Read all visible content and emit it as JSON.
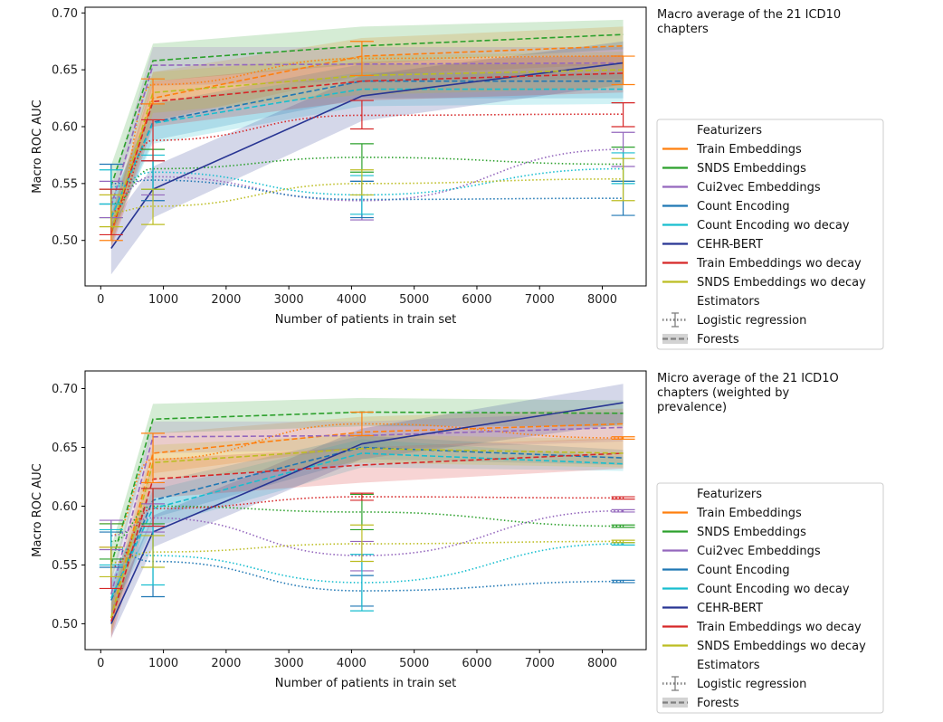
{
  "legend": {
    "featurizers_title": "Featurizers",
    "estimators_title": "Estimators",
    "estimators": [
      {
        "name": "Logistic regression",
        "style": "dotted"
      },
      {
        "name": "Forests",
        "style": "dashed"
      }
    ]
  },
  "colors": {
    "Train Embeddings": "#ff7f0e",
    "SNDS Embeddings": "#2ca02c",
    "Cui2vec Embeddings": "#9467bd",
    "Count Encoding": "#1f77b4",
    "Count Encoding wo decay": "#17becf",
    "CEHR-BERT": "#283593",
    "Train Embeddings wo decay": "#d62728",
    "SNDS Embeddings wo decay": "#bcbd22",
    "estimator_gray": "#808080"
  },
  "chart_data": [
    {
      "type": "line",
      "caption": "Macro average of the 21 ICD10 chapters",
      "xlabel": "Number of patients in train set",
      "ylabel": "Macro ROC AUC",
      "xlim": [
        -250,
        8700
      ],
      "ylim": [
        0.46,
        0.705
      ],
      "xticks": [
        0,
        1000,
        2000,
        3000,
        4000,
        5000,
        6000,
        7000,
        8000
      ],
      "yticks": [
        0.5,
        0.55,
        0.6,
        0.65,
        0.7
      ],
      "x": [
        166,
        833,
        4166,
        8333
      ],
      "series": [
        {
          "name": "Train Embeddings",
          "estimator": "Logistic regression",
          "values": [
            0.52,
            0.637,
            0.66,
            0.662
          ],
          "err_low": [
            0.5,
            0.62,
            0.645,
            0.637
          ],
          "err_high": [
            0.54,
            0.642,
            0.675,
            0.662
          ]
        },
        {
          "name": "Train Embeddings",
          "estimator": "Forests",
          "values": [
            0.505,
            0.625,
            0.662,
            0.671
          ],
          "band_low": [
            0.495,
            0.605,
            0.645,
            0.655
          ],
          "band_high": [
            0.515,
            0.648,
            0.678,
            0.688
          ]
        },
        {
          "name": "SNDS Embeddings",
          "estimator": "Logistic regression",
          "values": [
            0.532,
            0.563,
            0.573,
            0.567
          ],
          "err_low": [
            0.52,
            0.545,
            0.56,
            0.552
          ],
          "err_high": [
            0.545,
            0.58,
            0.585,
            0.582
          ]
        },
        {
          "name": "SNDS Embeddings",
          "estimator": "Forests",
          "values": [
            0.548,
            0.658,
            0.671,
            0.681
          ],
          "band_low": [
            0.53,
            0.64,
            0.655,
            0.668
          ],
          "band_high": [
            0.566,
            0.673,
            0.688,
            0.694
          ]
        },
        {
          "name": "Cui2vec Embeddings",
          "estimator": "Logistic regression",
          "values": [
            0.537,
            0.556,
            0.535,
            0.58
          ],
          "err_low": [
            0.52,
            0.54,
            0.518,
            0.565
          ],
          "err_high": [
            0.552,
            0.57,
            0.552,
            0.595
          ]
        },
        {
          "name": "Cui2vec Embeddings",
          "estimator": "Forests",
          "values": [
            0.53,
            0.654,
            0.655,
            0.656
          ],
          "band_low": [
            0.515,
            0.636,
            0.64,
            0.642
          ],
          "band_high": [
            0.545,
            0.67,
            0.67,
            0.67
          ]
        },
        {
          "name": "Count Encoding",
          "estimator": "Logistic regression",
          "values": [
            0.55,
            0.553,
            0.536,
            0.537
          ],
          "err_low": [
            0.532,
            0.535,
            0.52,
            0.522
          ],
          "err_high": [
            0.567,
            0.57,
            0.552,
            0.552
          ]
        },
        {
          "name": "Count Encoding",
          "estimator": "Forests",
          "values": [
            0.52,
            0.604,
            0.64,
            0.64
          ],
          "band_low": [
            0.505,
            0.588,
            0.625,
            0.625
          ],
          "band_high": [
            0.535,
            0.62,
            0.655,
            0.655
          ]
        },
        {
          "name": "Count Encoding wo decay",
          "estimator": "Logistic regression",
          "values": [
            0.547,
            0.56,
            0.54,
            0.563
          ],
          "err_low": [
            0.532,
            0.545,
            0.523,
            0.55
          ],
          "err_high": [
            0.562,
            0.575,
            0.557,
            0.577
          ]
        },
        {
          "name": "Count Encoding wo decay",
          "estimator": "Forests",
          "values": [
            0.52,
            0.603,
            0.633,
            0.633
          ],
          "band_low": [
            0.505,
            0.585,
            0.618,
            0.62
          ],
          "band_high": [
            0.535,
            0.62,
            0.648,
            0.647
          ]
        },
        {
          "name": "CEHR-BERT",
          "estimator": "Forests",
          "values": [
            0.493,
            0.545,
            0.627,
            0.656
          ],
          "band_low": [
            0.47,
            0.52,
            0.605,
            0.637
          ],
          "band_high": [
            0.515,
            0.565,
            0.645,
            0.675
          ]
        },
        {
          "name": "Train Embeddings wo decay",
          "estimator": "Logistic regression",
          "values": [
            0.525,
            0.588,
            0.61,
            0.611
          ],
          "err_low": [
            0.505,
            0.57,
            0.598,
            0.6
          ],
          "err_high": [
            0.545,
            0.606,
            0.623,
            0.621
          ]
        },
        {
          "name": "Train Embeddings wo decay",
          "estimator": "Forests",
          "values": [
            0.507,
            0.622,
            0.64,
            0.647
          ],
          "band_low": [
            0.492,
            0.6,
            0.623,
            0.63
          ],
          "band_high": [
            0.522,
            0.64,
            0.657,
            0.663
          ]
        },
        {
          "name": "SNDS Embeddings wo decay",
          "estimator": "Logistic regression",
          "values": [
            0.525,
            0.53,
            0.55,
            0.554
          ],
          "err_low": [
            0.512,
            0.514,
            0.54,
            0.535
          ],
          "err_high": [
            0.54,
            0.545,
            0.562,
            0.572
          ]
        },
        {
          "name": "SNDS Embeddings wo decay",
          "estimator": "Forests",
          "values": [
            0.508,
            0.63,
            0.645,
            0.65
          ],
          "band_low": [
            0.495,
            0.612,
            0.628,
            0.634
          ],
          "band_high": [
            0.522,
            0.648,
            0.662,
            0.666
          ]
        }
      ]
    },
    {
      "type": "line",
      "caption": "Micro average of the 21 ICD1O chapters (weighted by prevalence)",
      "xlabel": "Number of patients in train set",
      "ylabel": "Macro ROC AUC",
      "xlim": [
        -250,
        8700
      ],
      "ylim": [
        0.478,
        0.715
      ],
      "xticks": [
        0,
        1000,
        2000,
        3000,
        4000,
        5000,
        6000,
        7000,
        8000
      ],
      "yticks": [
        0.5,
        0.55,
        0.6,
        0.65,
        0.7
      ],
      "x": [
        166,
        833,
        4166,
        8333
      ],
      "series": [
        {
          "name": "Train Embeddings",
          "estimator": "Logistic regression",
          "values": [
            0.575,
            0.64,
            0.67,
            0.658
          ],
          "err_low": [
            0.565,
            0.62,
            0.66,
            0.657
          ],
          "err_high": [
            0.585,
            0.662,
            0.68,
            0.659
          ]
        },
        {
          "name": "Train Embeddings",
          "estimator": "Forests",
          "values": [
            0.505,
            0.645,
            0.663,
            0.67
          ],
          "band_low": [
            0.49,
            0.628,
            0.65,
            0.657
          ],
          "band_high": [
            0.52,
            0.662,
            0.676,
            0.683
          ]
        },
        {
          "name": "SNDS Embeddings",
          "estimator": "Logistic regression",
          "values": [
            0.57,
            0.6,
            0.595,
            0.583
          ],
          "err_low": [
            0.555,
            0.585,
            0.58,
            0.582
          ],
          "err_high": [
            0.585,
            0.615,
            0.61,
            0.584
          ]
        },
        {
          "name": "SNDS Embeddings",
          "estimator": "Forests",
          "values": [
            0.55,
            0.674,
            0.68,
            0.679
          ],
          "band_low": [
            0.535,
            0.662,
            0.668,
            0.668
          ],
          "band_high": [
            0.565,
            0.687,
            0.692,
            0.69
          ]
        },
        {
          "name": "Cui2vec Embeddings",
          "estimator": "Logistic regression",
          "values": [
            0.575,
            0.59,
            0.558,
            0.596
          ],
          "err_low": [
            0.563,
            0.578,
            0.545,
            0.595
          ],
          "err_high": [
            0.588,
            0.602,
            0.57,
            0.597
          ]
        },
        {
          "name": "Cui2vec Embeddings",
          "estimator": "Forests",
          "values": [
            0.525,
            0.659,
            0.66,
            0.667
          ],
          "band_low": [
            0.51,
            0.645,
            0.648,
            0.655
          ],
          "band_high": [
            0.54,
            0.672,
            0.672,
            0.68
          ]
        },
        {
          "name": "Count Encoding",
          "estimator": "Logistic regression",
          "values": [
            0.563,
            0.553,
            0.528,
            0.536
          ],
          "err_low": [
            0.548,
            0.523,
            0.515,
            0.535
          ],
          "err_high": [
            0.578,
            0.583,
            0.541,
            0.537
          ]
        },
        {
          "name": "Count Encoding",
          "estimator": "Forests",
          "values": [
            0.52,
            0.605,
            0.65,
            0.641
          ],
          "band_low": [
            0.505,
            0.59,
            0.64,
            0.635
          ],
          "band_high": [
            0.535,
            0.62,
            0.66,
            0.648
          ]
        },
        {
          "name": "Count Encoding wo decay",
          "estimator": "Logistic regression",
          "values": [
            0.565,
            0.558,
            0.535,
            0.568
          ],
          "err_low": [
            0.55,
            0.533,
            0.511,
            0.567
          ],
          "err_high": [
            0.58,
            0.583,
            0.559,
            0.569
          ]
        },
        {
          "name": "Count Encoding wo decay",
          "estimator": "Forests",
          "values": [
            0.522,
            0.598,
            0.645,
            0.636
          ],
          "band_low": [
            0.507,
            0.582,
            0.633,
            0.63
          ],
          "band_high": [
            0.537,
            0.614,
            0.657,
            0.642
          ]
        },
        {
          "name": "CEHR-BERT",
          "estimator": "Forests",
          "values": [
            0.5,
            0.578,
            0.653,
            0.688
          ],
          "band_low": [
            0.488,
            0.565,
            0.64,
            0.67
          ],
          "band_high": [
            0.512,
            0.592,
            0.666,
            0.704
          ]
        },
        {
          "name": "Train Embeddings wo decay",
          "estimator": "Logistic regression",
          "values": [
            0.548,
            0.598,
            0.608,
            0.607
          ],
          "err_low": [
            0.53,
            0.583,
            0.605,
            0.606
          ],
          "err_high": [
            0.565,
            0.615,
            0.611,
            0.608
          ]
        },
        {
          "name": "Train Embeddings wo decay",
          "estimator": "Forests",
          "values": [
            0.502,
            0.623,
            0.635,
            0.645
          ],
          "band_low": [
            0.487,
            0.607,
            0.62,
            0.632
          ],
          "band_high": [
            0.517,
            0.64,
            0.65,
            0.658
          ]
        },
        {
          "name": "SNDS Embeddings wo decay",
          "estimator": "Logistic regression",
          "values": [
            0.552,
            0.561,
            0.568,
            0.57
          ],
          "err_low": [
            0.54,
            0.548,
            0.553,
            0.569
          ],
          "err_high": [
            0.565,
            0.575,
            0.584,
            0.571
          ]
        },
        {
          "name": "SNDS Embeddings wo decay",
          "estimator": "Forests",
          "values": [
            0.505,
            0.637,
            0.649,
            0.645
          ],
          "band_low": [
            0.492,
            0.622,
            0.637,
            0.633
          ],
          "band_high": [
            0.518,
            0.652,
            0.661,
            0.657
          ]
        }
      ]
    }
  ]
}
